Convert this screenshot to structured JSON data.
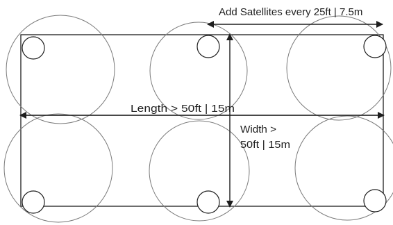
{
  "labels": {
    "spacing": "Add Satellites every 25ft | 7.5m",
    "length": "Length > 50ft | 15m",
    "width_line1": "Width >",
    "width_line2": "50ft | 15m"
  },
  "colors": {
    "room_outline": "#1e1e1e",
    "coverage_circle": "#7a7a7a",
    "satellite_circle": "#1e1e1e",
    "arrow": "#1e1e1e"
  }
}
